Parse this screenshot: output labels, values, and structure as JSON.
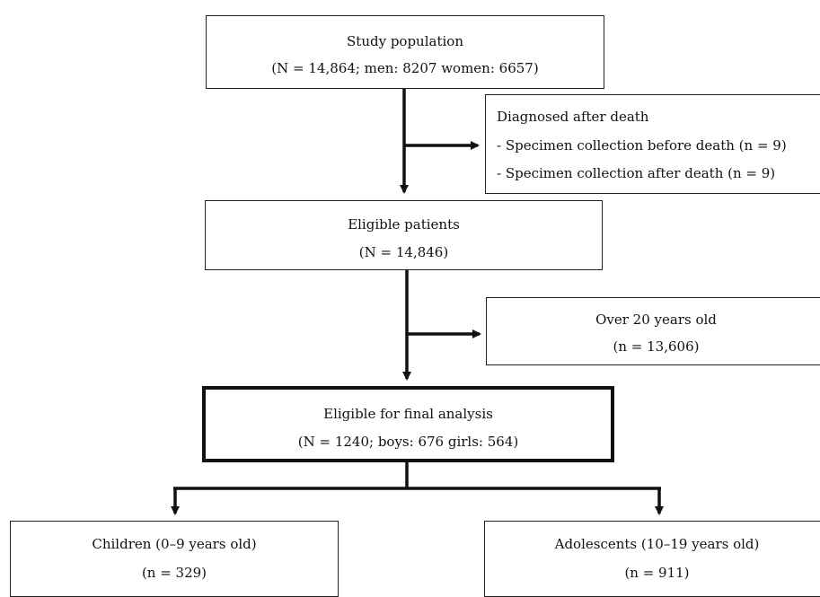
{
  "flowchart": {
    "study_population": {
      "title": "Study population",
      "detail": "(N = 14,864; men: 8207 women: 6657)"
    },
    "excluded_death": {
      "title": "Diagnosed after death",
      "items": [
        "- Specimen collection before death (n = 9)",
        "- Specimen collection after death (n = 9)"
      ]
    },
    "eligible_patients": {
      "title": "Eligible patients",
      "detail": "(N = 14,846)"
    },
    "excluded_age": {
      "title": "Over 20 years old",
      "detail": "(n = 13,606)"
    },
    "final_analysis": {
      "title": "Eligible for final analysis",
      "detail": "(N = 1240; boys: 676 girls: 564)"
    },
    "children": {
      "title": "Children (0–9 years old)",
      "detail": "(n = 329)"
    },
    "adolescents": {
      "title": "Adolescents (10–19 years old)",
      "detail": "(n = 911)"
    }
  }
}
